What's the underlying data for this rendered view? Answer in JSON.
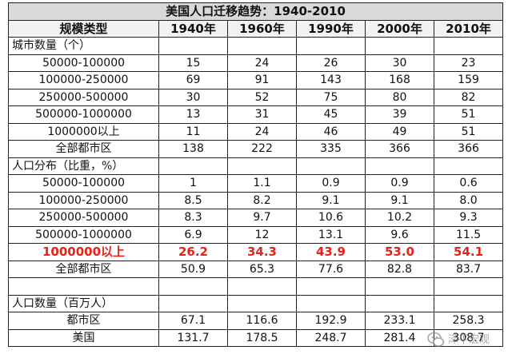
{
  "title": "美国人口迁移趋势：1940-2010",
  "header": [
    "规模类型",
    "1940年",
    "1960年",
    "1990年",
    "2000年",
    "2010年"
  ],
  "section_cities": "城市数量（个）",
  "city_rows": [
    [
      "50000-100000",
      "15",
      "24",
      "26",
      "30",
      "23"
    ],
    [
      "100000-250000",
      "69",
      "91",
      "143",
      "168",
      "159"
    ],
    [
      "250000-500000",
      "30",
      "52",
      "75",
      "80",
      "82"
    ],
    [
      "500000-1000000",
      "13",
      "31",
      "45",
      "39",
      "51"
    ],
    [
      "1000000以上",
      "11",
      "24",
      "46",
      "49",
      "51"
    ],
    [
      "全部都市区",
      "138",
      "222",
      "335",
      "366",
      "366"
    ]
  ],
  "section_share": "人口分布（比重，%）",
  "share_rows": [
    [
      "50000-100000",
      "1",
      "1.1",
      "0.9",
      "0.9",
      "0.6"
    ],
    [
      "100000-250000",
      "8.5",
      "8.2",
      "9.1",
      "9.1",
      "8.0"
    ],
    [
      "250000-500000",
      "8.3",
      "9.7",
      "10.6",
      "10.2",
      "9.3"
    ],
    [
      "500000-1000000",
      "6.9",
      "12",
      "13.1",
      "9.6",
      "11.5"
    ]
  ],
  "highlight_row": [
    "1000000以上",
    "26.2",
    "34.3",
    "43.9",
    "53.0",
    "54.1"
  ],
  "share_total_row": [
    "全部都市区",
    "50.9",
    "65.3",
    "77.6",
    "82.8",
    "83.7"
  ],
  "section_pop": "人口数量（百万人）",
  "pop_rows": [
    [
      "都市区",
      "67.1",
      "116.6",
      "192.9",
      "233.1",
      "258.3"
    ],
    [
      "美国",
      "131.7",
      "178.5",
      "248.7",
      "281.4",
      "308.7"
    ]
  ],
  "highlight_color": "#e8211b",
  "watermark": {
    "icon": "wechat-icon",
    "text": "泽平宏观"
  }
}
